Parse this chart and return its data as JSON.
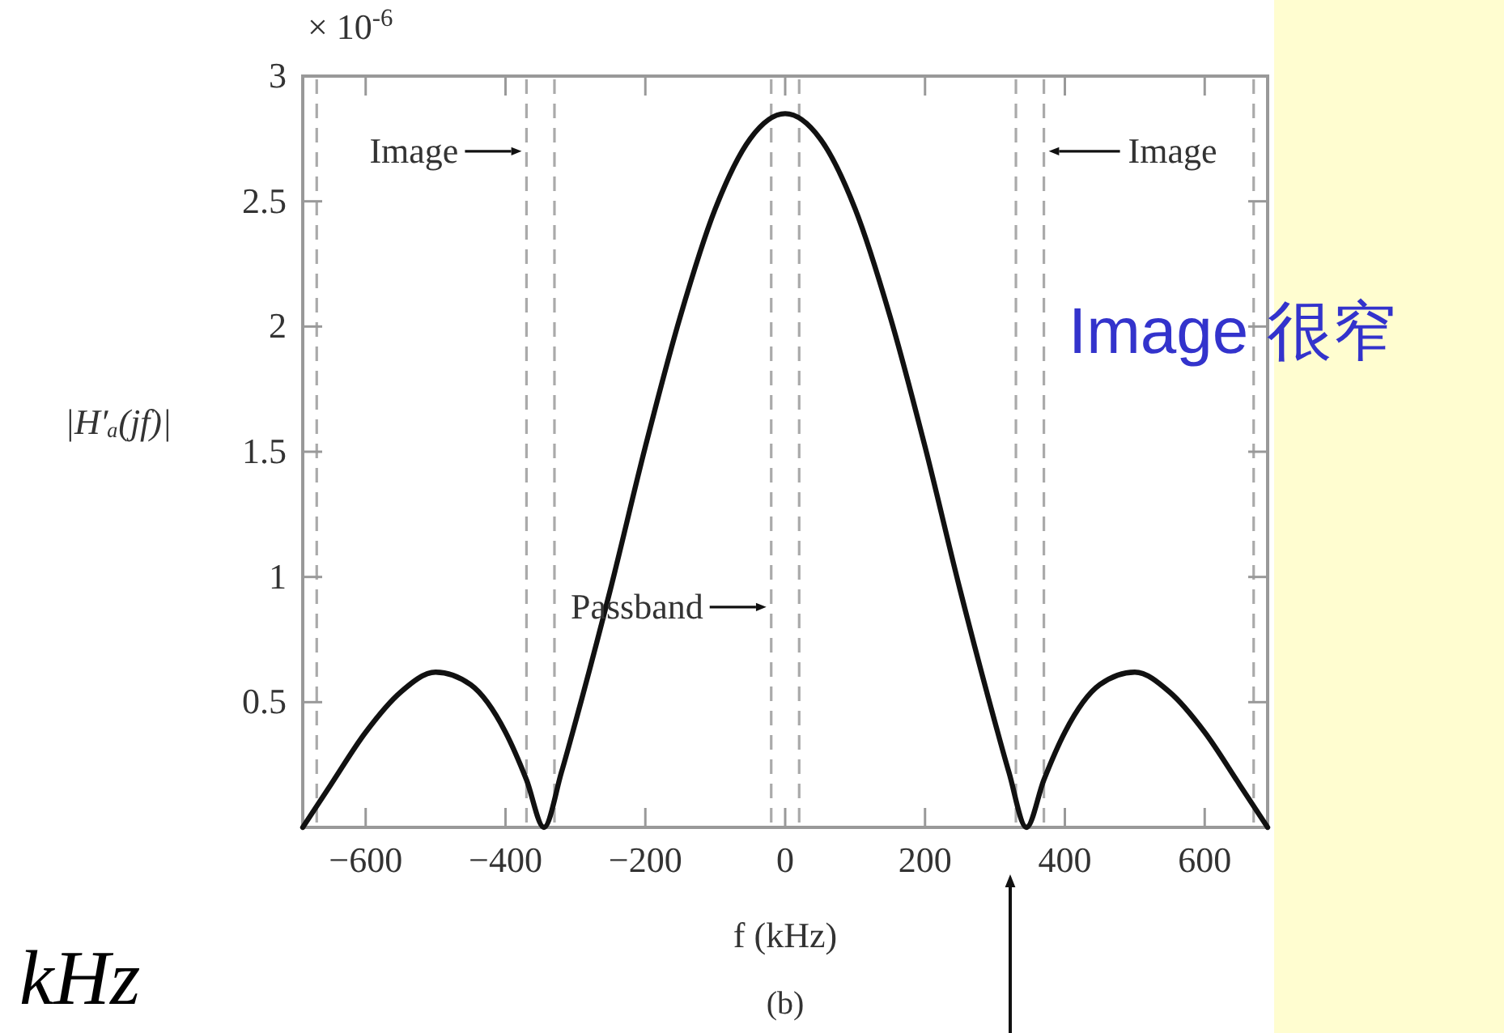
{
  "chart_data": {
    "type": "line",
    "ylabel": "|H′ₐ(jf)|",
    "xlabel": "f (kHz)",
    "x": [
      -690,
      -650,
      -600,
      -550,
      -500,
      -450,
      -400,
      -370,
      -345,
      -320,
      -300,
      -250,
      -200,
      -150,
      -100,
      -50,
      0,
      50,
      100,
      150,
      200,
      250,
      300,
      320,
      345,
      370,
      400,
      450,
      500,
      550,
      600,
      650,
      690
    ],
    "series": [
      {
        "color": "#111111",
        "values": [
          0,
          0.17,
          0.38,
          0.54,
          0.62,
          0.57,
          0.38,
          0.19,
          0,
          0.22,
          0.42,
          0.95,
          1.52,
          2.04,
          2.47,
          2.75,
          2.85,
          2.75,
          2.47,
          2.04,
          1.52,
          0.95,
          0.42,
          0.22,
          0,
          0.19,
          0.38,
          0.57,
          0.62,
          0.54,
          0.38,
          0.17,
          0
        ]
      }
    ],
    "xlim": [
      -690,
      690
    ],
    "ylim": [
      0,
      3
    ],
    "xticks": [
      -600,
      -400,
      -200,
      0,
      200,
      400,
      600
    ],
    "yticks": [
      0.5,
      1,
      1.5,
      2,
      2.5,
      3
    ],
    "grid": false,
    "marker": "none",
    "line_style": "solid",
    "ref_lines": [
      {
        "axis": "x",
        "value": -670,
        "color": "#aaaaaa",
        "line_style": "dashed"
      },
      {
        "axis": "x",
        "value": -370,
        "color": "#aaaaaa",
        "line_style": "dashed"
      },
      {
        "axis": "x",
        "value": -330,
        "color": "#aaaaaa",
        "line_style": "dashed"
      },
      {
        "axis": "x",
        "value": -20,
        "color": "#aaaaaa",
        "line_style": "dashed"
      },
      {
        "axis": "x",
        "value": 20,
        "color": "#aaaaaa",
        "line_style": "dashed"
      },
      {
        "axis": "x",
        "value": 330,
        "color": "#aaaaaa",
        "line_style": "dashed"
      },
      {
        "axis": "x",
        "value": 370,
        "color": "#aaaaaa",
        "line_style": "dashed"
      },
      {
        "axis": "x",
        "value": 670,
        "color": "#aaaaaa",
        "line_style": "dashed"
      }
    ],
    "annotations": [
      {
        "text": "Image",
        "x": -370,
        "y": 2.7
      },
      {
        "text": "Image",
        "x": 370,
        "y": 2.7
      },
      {
        "text": "Passband",
        "x": -20,
        "y": 0.88
      },
      "× 10$^{-6}$",
      "Image 很窄",
      "(b)",
      "kHz"
    ]
  }
}
